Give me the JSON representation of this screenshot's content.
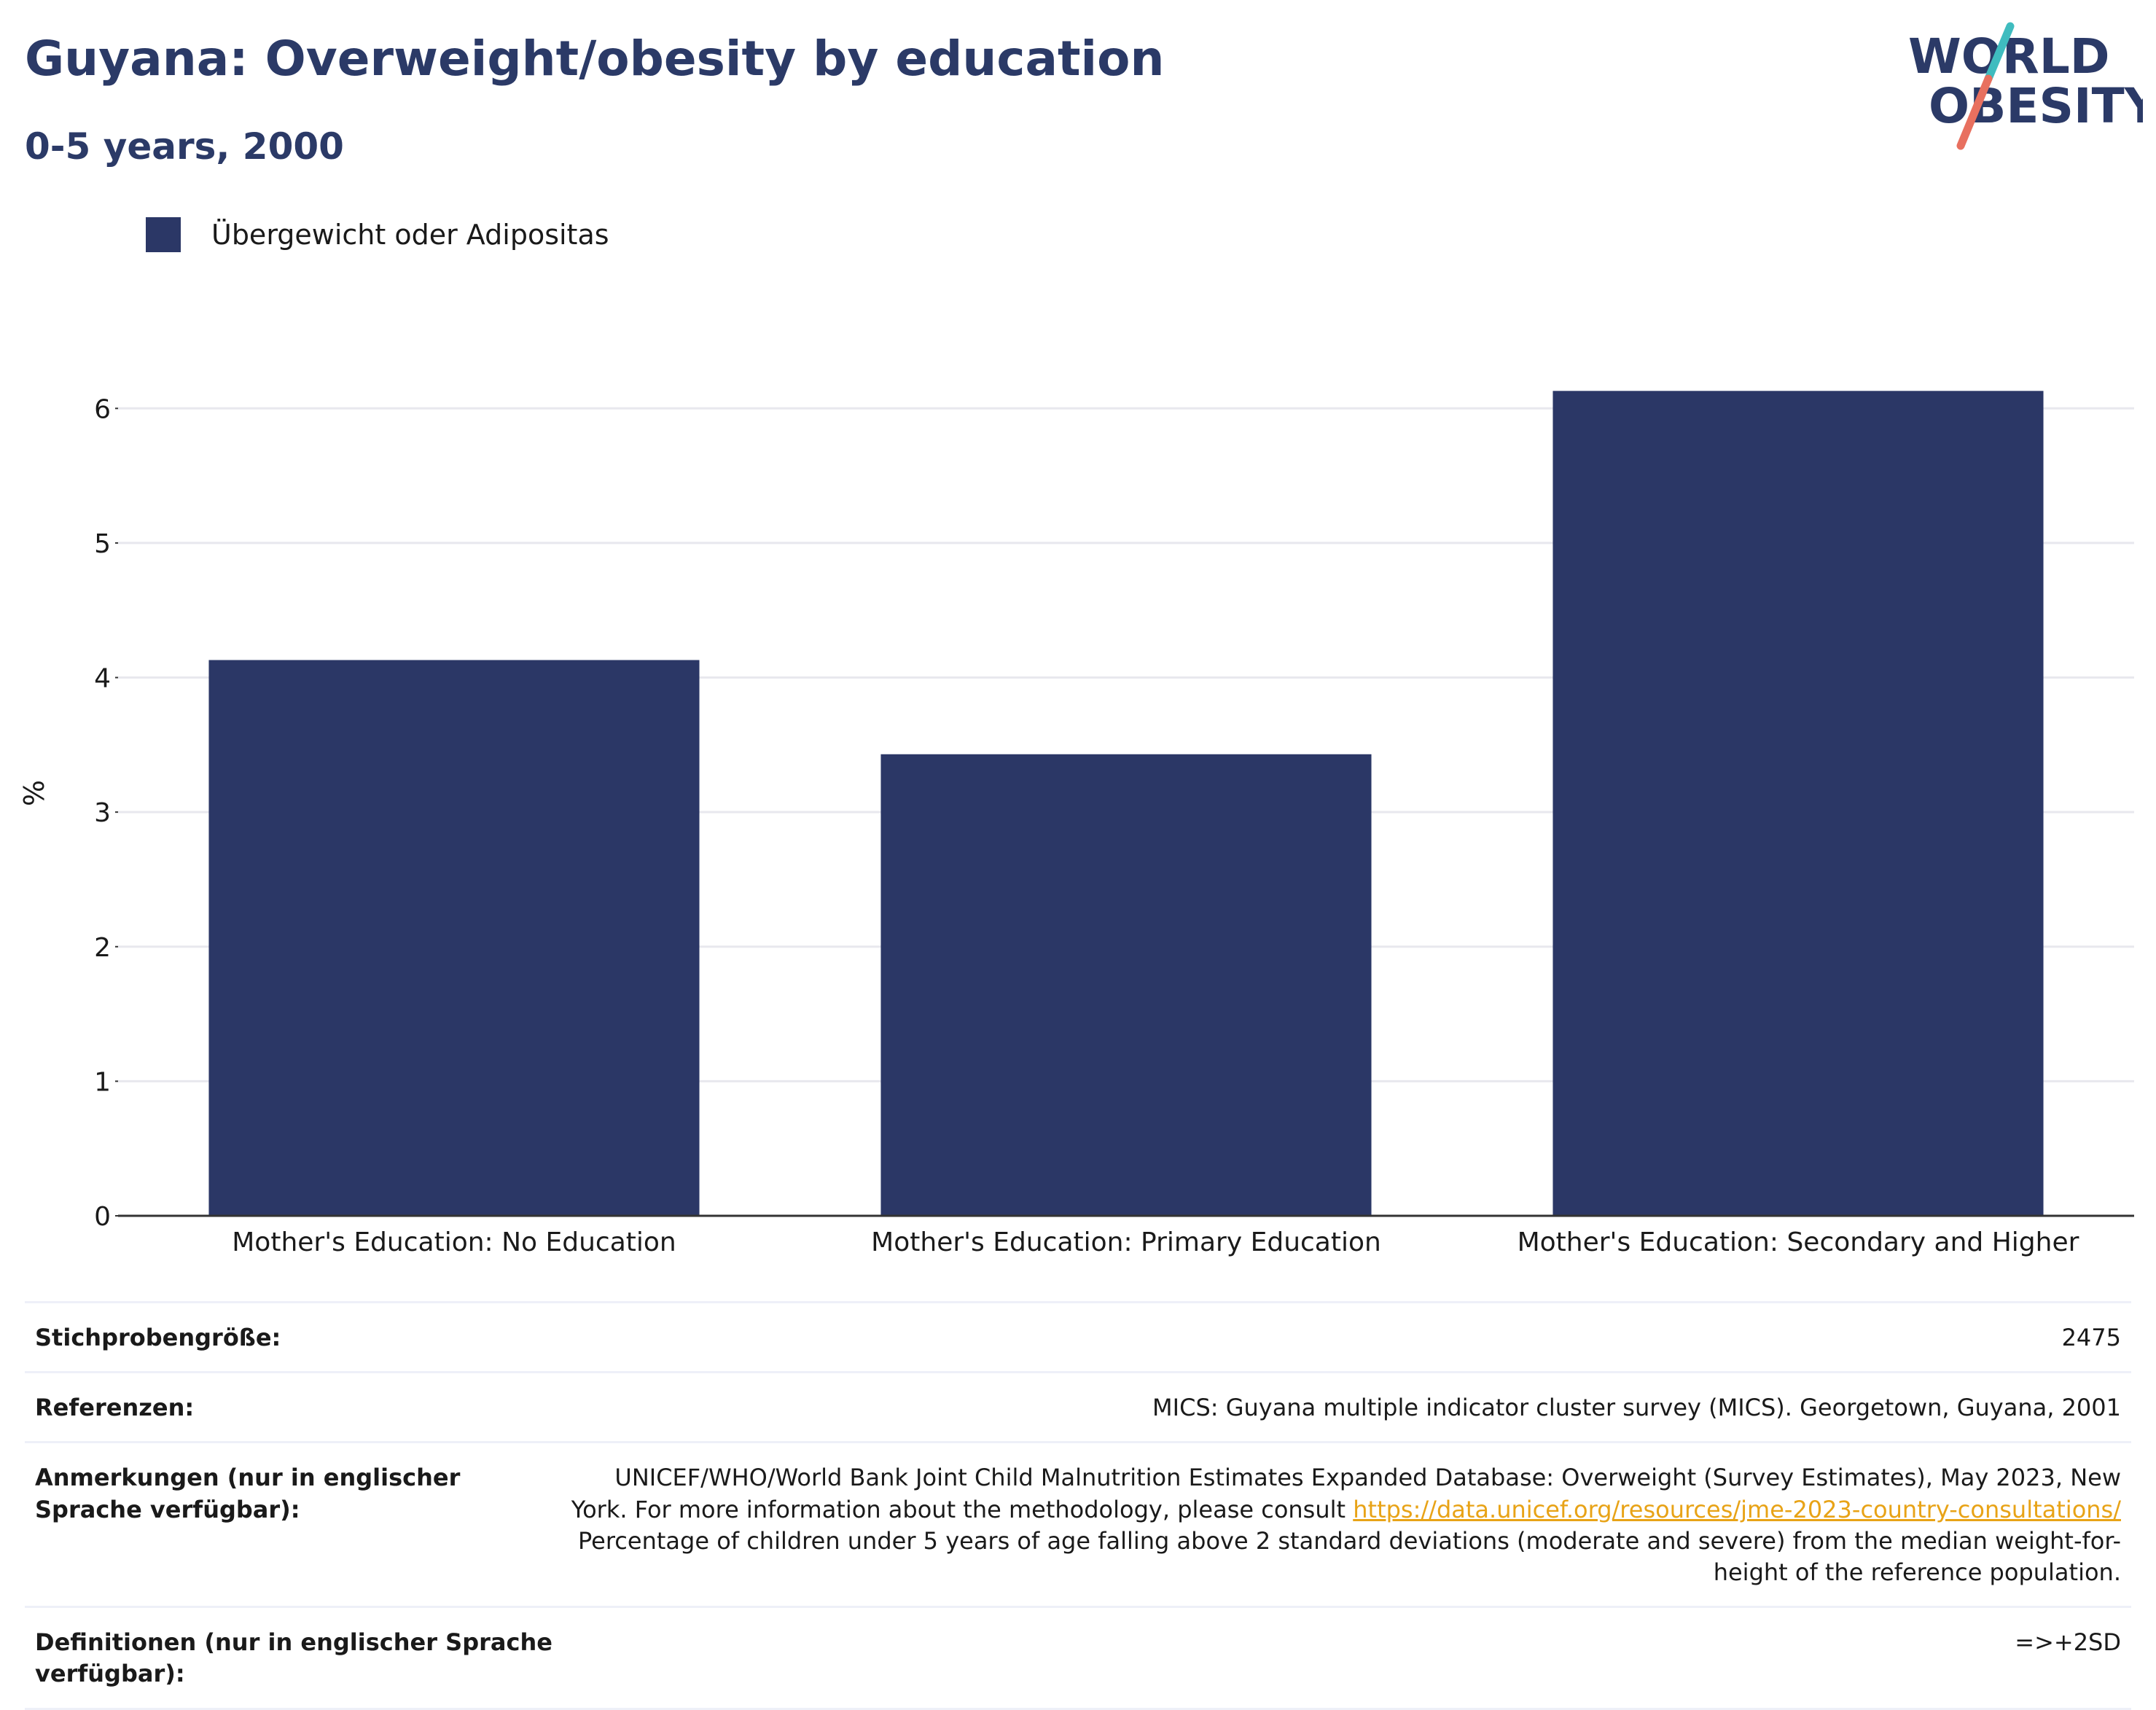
{
  "header": {
    "title": "Guyana: Overweight/obesity by education",
    "subtitle": "0-5 years, 2000"
  },
  "logo": {
    "line1": "WORLD",
    "line2": "OBESITY",
    "colors": {
      "text": "#2b3a67",
      "slash_top": "#3fbcbf",
      "slash_bottom": "#e8705f"
    }
  },
  "legend": {
    "label": "Übergewicht oder Adipositas",
    "color": "#2b3766"
  },
  "chart_data": {
    "type": "bar",
    "categories": [
      "Mother's Education: No Education",
      "Mother's Education: Primary Education",
      "Mother's Education: Secondary and Higher"
    ],
    "series": [
      {
        "name": "Übergewicht oder Adipositas",
        "values": [
          4.13,
          3.43,
          6.13
        ],
        "color": "#2b3766"
      }
    ],
    "ylabel": "%",
    "xlabel": "",
    "ylim": [
      0,
      6.5
    ],
    "yticks": [
      0,
      1,
      2,
      3,
      4,
      5,
      6
    ],
    "grid": true,
    "legend_position": "top-left"
  },
  "info": {
    "sample_key": "Stichprobengröße:",
    "sample_val": "2475",
    "refs_key": "Referenzen:",
    "refs_val": "MICS: Guyana multiple indicator cluster survey (MICS). Georgetown, Guyana, 2001",
    "notes_key": "Anmerkungen (nur in englischer Sprache verfügbar):",
    "notes_val_1": "UNICEF/WHO/World Bank Joint Child Malnutrition Estimates Expanded Database: Overweight (Survey Estimates), May 2023, New York. For more information about the methodology, please consult",
    "notes_link": "https://data.unicef.org/resources/jme-2023-country-consultations/",
    "notes_val_2": "Percentage of children under 5 years of age falling above 2 standard deviations (moderate and severe) from the median weight-for-height of the reference population.",
    "defs_key": "Definitionen (nur in englischer Sprache verfügbar):",
    "defs_val": "=>+2SD"
  }
}
